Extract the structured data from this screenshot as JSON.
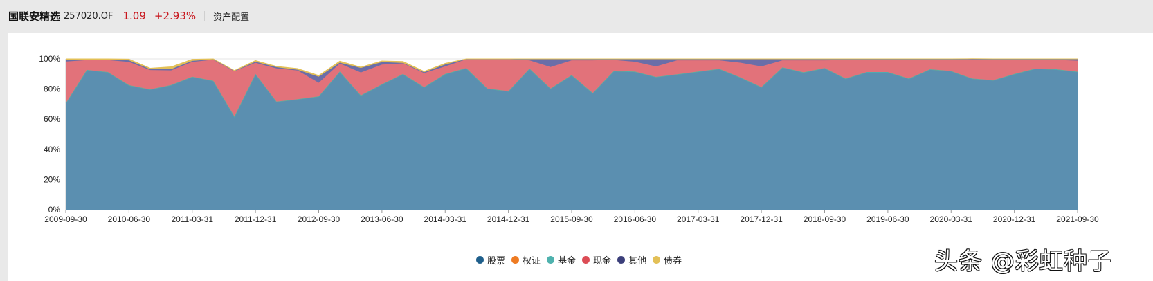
{
  "header": {
    "fund_name": "国联安精选",
    "fund_code": "257020.OF",
    "nav": "1.09",
    "change": "+2.93%",
    "tab": "资产配置"
  },
  "colors": {
    "stock": "#5b8fb0",
    "stock_legend": "#1f5f8b",
    "warrant": "#ee7b22",
    "fund": "#4fb2ae",
    "cash": "#e2727a",
    "cash_legend": "#dc4c55",
    "other": "#6a6ea8",
    "other_legend": "#3b3f7a",
    "bond": "#e3c057",
    "accent_red": "#c8161d"
  },
  "legend": [
    {
      "name": "股票",
      "key": "stock_legend"
    },
    {
      "name": "权证",
      "key": "warrant"
    },
    {
      "name": "基金",
      "key": "fund"
    },
    {
      "name": "现金",
      "key": "cash_legend"
    },
    {
      "name": "其他",
      "key": "other_legend"
    },
    {
      "name": "债券",
      "key": "bond"
    }
  ],
  "watermark": "头条 @彩虹种子",
  "chart_data": {
    "type": "area",
    "stacked": true,
    "title": "资产配置",
    "xlabel": "",
    "ylabel": "",
    "ylim": [
      0,
      100
    ],
    "y_ticks": [
      "0%",
      "20%",
      "40%",
      "60%",
      "80%",
      "100%"
    ],
    "x_tick_labels": [
      "2009-09-30",
      "2010-06-30",
      "2011-03-31",
      "2011-12-31",
      "2012-09-30",
      "2013-06-30",
      "2014-03-31",
      "2014-12-31",
      "2015-09-30",
      "2016-06-30",
      "2017-03-31",
      "2017-12-31",
      "2018-09-30",
      "2019-06-30",
      "2020-03-31",
      "2020-12-31",
      "2021-09-30"
    ],
    "x_start": "2009-09-30",
    "x_end": "2021-09-30",
    "frequency": "quarterly",
    "legend_position": "bottom",
    "series": [
      {
        "name": "股票",
        "values": [
          70.6,
          92.7,
          91.3,
          82.6,
          79.8,
          82.7,
          88.2,
          85.5,
          61.9,
          90.0,
          71.7,
          73.3,
          75.2,
          91.6,
          75.8,
          83.2,
          90.0,
          81.3,
          90.0,
          93.9,
          80.4,
          78.6,
          93.6,
          80.4,
          89.3,
          77.4,
          92.0,
          91.6,
          88.1,
          89.8,
          91.6,
          93.4,
          87.8,
          81.3,
          94.4,
          91.1,
          93.9,
          87.0,
          91.3,
          91.3,
          87.0,
          93.1,
          92.0,
          87.0,
          85.9,
          90.0,
          93.6,
          93.1,
          91.5
        ]
      },
      {
        "name": "权证",
        "values": [
          0,
          0,
          0,
          0,
          0,
          0,
          0,
          0,
          0,
          0,
          0,
          0,
          0,
          0,
          0,
          0,
          0,
          0,
          0,
          0,
          0,
          0,
          0,
          0,
          0,
          0,
          0,
          0,
          0,
          0,
          0,
          0,
          0,
          0,
          0,
          0,
          0,
          0,
          0,
          0,
          0,
          0,
          0,
          0,
          0,
          0,
          0,
          0,
          0
        ]
      },
      {
        "name": "基金",
        "values": [
          0,
          0,
          0,
          0,
          0,
          0,
          0,
          0,
          0,
          0,
          0,
          0,
          0,
          0,
          0,
          0,
          0,
          0,
          0,
          0,
          0,
          0,
          0,
          0,
          0,
          0,
          0,
          0,
          0,
          0,
          0,
          0,
          0,
          0,
          0,
          0,
          0,
          0,
          0,
          0,
          0,
          0,
          0,
          0,
          0,
          0,
          0,
          0,
          0
        ]
      },
      {
        "name": "现金",
        "values": [
          27.6,
          6.5,
          7.9,
          15.4,
          12.8,
          9.7,
          9.8,
          13.9,
          29.9,
          7.4,
          22.0,
          19.0,
          9.0,
          5.3,
          15.2,
          13.0,
          7.0,
          9.3,
          5.0,
          5.8,
          19.4,
          21.2,
          5.4,
          14.2,
          9.7,
          21.6,
          7.3,
          6.5,
          6.9,
          9.2,
          7.4,
          5.6,
          9.7,
          13.7,
          4.6,
          7.9,
          5.1,
          12.2,
          8.2,
          7.9,
          12.5,
          6.4,
          7.5,
          12.6,
          13.5,
          9.5,
          5.9,
          6.2,
          7.3
        ]
      },
      {
        "name": "其他",
        "values": [
          1.0,
          0.3,
          0.3,
          1.0,
          0.6,
          0.8,
          0.7,
          0.3,
          0.2,
          0.7,
          0.8,
          0.5,
          4.0,
          0.6,
          3.0,
          1.7,
          0.3,
          0.5,
          1.3,
          0.2,
          0.1,
          0.1,
          0.9,
          5.4,
          0.9,
          0.9,
          0.6,
          1.8,
          4.9,
          0.9,
          0.9,
          0.9,
          2.4,
          4.9,
          0.9,
          0.9,
          0.9,
          0.7,
          0.4,
          0.7,
          0.4,
          0.4,
          0.4,
          0.4,
          0.5,
          0.4,
          0.4,
          0.6,
          1.0
        ]
      },
      {
        "name": "债券",
        "values": [
          0.8,
          0.5,
          0.5,
          0.8,
          0.6,
          1.5,
          1.0,
          0.3,
          0.3,
          0.8,
          0.5,
          0.8,
          0.8,
          1.0,
          0.5,
          0.7,
          1.0,
          0.6,
          0.7,
          0.1,
          0.1,
          0.1,
          0.1,
          0.0,
          0.1,
          0.1,
          0.1,
          0.1,
          0.1,
          0.1,
          0.1,
          0.1,
          0.1,
          0.1,
          0.1,
          0.1,
          0.1,
          0.1,
          0.1,
          0.1,
          0.1,
          0.1,
          0.1,
          0.1,
          0.1,
          0.1,
          0.1,
          0.1,
          0.2
        ]
      }
    ],
    "shortfall_note": "Some quarters total below 100% (e.g. ~93% mid-2010, ~89% late-2012) per chart shape"
  }
}
